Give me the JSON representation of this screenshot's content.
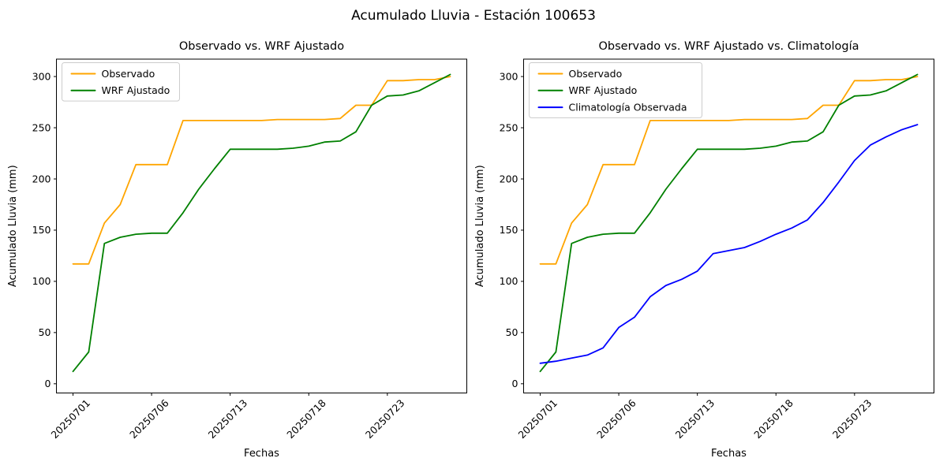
{
  "figure": {
    "title": "Acumulado Lluvia - Estación 100653"
  },
  "chart_data": [
    {
      "type": "line",
      "title": "Observado vs. WRF Ajustado",
      "xlabel": "Fechas",
      "ylabel": "Acumulado Lluvia (mm)",
      "x": [
        "20250701",
        "20250702",
        "20250703",
        "20250704",
        "20250705",
        "20250706",
        "20250707",
        "20250708",
        "20250709",
        "20250710",
        "20250713",
        "20250714",
        "20250715",
        "20250716",
        "20250717",
        "20250718",
        "20250719",
        "20250720",
        "20250721",
        "20250722",
        "20250723",
        "20250724",
        "20250725",
        "20250726",
        "20250727"
      ],
      "xticks": {
        "labels": [
          "20250701",
          "20250706",
          "20250713",
          "20250718",
          "20250723"
        ],
        "indices": [
          0,
          5,
          10,
          15,
          20
        ]
      },
      "yticks": [
        0,
        50,
        100,
        150,
        200,
        250,
        300
      ],
      "ylim": [
        -9,
        317
      ],
      "grid": false,
      "legend_position": "upper-left",
      "series": [
        {
          "name": "Observado",
          "color": "#FFA500",
          "values": [
            117,
            117,
            157,
            175,
            214,
            214,
            214,
            257,
            257,
            257,
            257,
            257,
            257,
            258,
            258,
            258,
            258,
            259,
            272,
            272,
            296,
            296,
            297,
            297,
            300
          ]
        },
        {
          "name": "WRF Ajustado",
          "color": "#008000",
          "values": [
            12,
            31,
            137,
            143,
            146,
            147,
            147,
            167,
            190,
            210,
            229,
            229,
            229,
            229,
            230,
            232,
            236,
            237,
            246,
            272,
            281,
            282,
            286,
            294,
            302
          ]
        }
      ]
    },
    {
      "type": "line",
      "title": "Observado vs. WRF Ajustado vs. Climatología",
      "xlabel": "Fechas",
      "ylabel": "Acumulado Lluvia (mm)",
      "x": [
        "20250701",
        "20250702",
        "20250703",
        "20250704",
        "20250705",
        "20250706",
        "20250707",
        "20250708",
        "20250709",
        "20250710",
        "20250713",
        "20250714",
        "20250715",
        "20250716",
        "20250717",
        "20250718",
        "20250719",
        "20250720",
        "20250721",
        "20250722",
        "20250723",
        "20250724",
        "20250725",
        "20250726",
        "20250727"
      ],
      "xticks": {
        "labels": [
          "20250701",
          "20250706",
          "20250713",
          "20250718",
          "20250723"
        ],
        "indices": [
          0,
          5,
          10,
          15,
          20
        ]
      },
      "yticks": [
        0,
        50,
        100,
        150,
        200,
        250,
        300
      ],
      "ylim": [
        -9,
        317
      ],
      "grid": false,
      "legend_position": "upper-left",
      "series": [
        {
          "name": "Observado",
          "color": "#FFA500",
          "values": [
            117,
            117,
            157,
            175,
            214,
            214,
            214,
            257,
            257,
            257,
            257,
            257,
            257,
            258,
            258,
            258,
            258,
            259,
            272,
            272,
            296,
            296,
            297,
            297,
            300
          ]
        },
        {
          "name": "WRF Ajustado",
          "color": "#008000",
          "values": [
            12,
            31,
            137,
            143,
            146,
            147,
            147,
            167,
            190,
            210,
            229,
            229,
            229,
            229,
            230,
            232,
            236,
            237,
            246,
            272,
            281,
            282,
            286,
            294,
            302
          ]
        },
        {
          "name": "Climatología Observada",
          "color": "#0000FF",
          "values": [
            20,
            22,
            25,
            28,
            35,
            55,
            65,
            85,
            96,
            102,
            110,
            127,
            130,
            133,
            139,
            146,
            152,
            160,
            177,
            197,
            218,
            233,
            241,
            248,
            253
          ]
        }
      ]
    }
  ]
}
